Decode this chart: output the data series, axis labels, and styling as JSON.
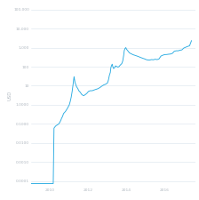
{
  "title": "",
  "ylabel": "USD",
  "background_color": "#ffffff",
  "line_color": "#29abe2",
  "grid_color": "#d8e4ed",
  "label_color": "#b0b8c0",
  "ylim_log": [
    -4.3,
    5.3
  ],
  "yticks": [
    0.0001,
    0.001,
    0.01,
    0.1,
    1.0,
    10,
    100,
    1000,
    10000,
    100000
  ],
  "ytick_labels": [
    "0.0001",
    "0.0010",
    "0.0100",
    "0.1000",
    "1.0000",
    "10",
    "100",
    "1,000",
    "10,000",
    "100,000"
  ],
  "xticks": [
    2010,
    2012,
    2014,
    2016
  ],
  "xlim": [
    2009.0,
    2017.6
  ],
  "bitcoin_data": {
    "dates": [
      2009.0,
      2009.3,
      2009.6,
      2009.9,
      2010.0,
      2010.08,
      2010.12,
      2010.16,
      2010.2,
      2010.25,
      2010.3,
      2010.38,
      2010.45,
      2010.5,
      2010.55,
      2010.6,
      2010.65,
      2010.7,
      2010.8,
      2010.9,
      2011.0,
      2011.05,
      2011.1,
      2011.15,
      2011.2,
      2011.25,
      2011.3,
      2011.38,
      2011.45,
      2011.5,
      2011.58,
      2011.65,
      2011.75,
      2011.85,
      2011.92,
      2012.0,
      2012.1,
      2012.2,
      2012.3,
      2012.4,
      2012.5,
      2012.6,
      2012.7,
      2012.8,
      2012.9,
      2013.0,
      2013.05,
      2013.1,
      2013.15,
      2013.18,
      2013.22,
      2013.25,
      2013.28,
      2013.32,
      2013.38,
      2013.42,
      2013.46,
      2013.5,
      2013.55,
      2013.6,
      2013.65,
      2013.7,
      2013.75,
      2013.8,
      2013.85,
      2013.88,
      2013.92,
      2013.96,
      2014.0,
      2014.08,
      2014.15,
      2014.25,
      2014.35,
      2014.45,
      2014.55,
      2014.65,
      2014.75,
      2014.85,
      2014.95,
      2015.0,
      2015.1,
      2015.2,
      2015.3,
      2015.4,
      2015.5,
      2015.6,
      2015.7,
      2015.8,
      2015.9,
      2016.0,
      2016.1,
      2016.2,
      2016.3,
      2016.4,
      2016.5,
      2016.6,
      2016.7,
      2016.8,
      2016.9,
      2017.0,
      2017.1,
      2017.2,
      2017.3,
      2017.4
    ],
    "prices": [
      7.5e-05,
      7.5e-05,
      7.5e-05,
      7.5e-05,
      7.5e-05,
      7.5e-05,
      7.5e-05,
      7.5e-05,
      0.06,
      0.07,
      0.08,
      0.09,
      0.1,
      0.12,
      0.15,
      0.2,
      0.25,
      0.35,
      0.45,
      0.65,
      1.0,
      1.5,
      2.5,
      5.0,
      12.0,
      30.0,
      15.0,
      9.0,
      7.0,
      5.5,
      4.5,
      3.5,
      3.0,
      3.5,
      4.0,
      5.0,
      5.5,
      5.5,
      6.0,
      6.5,
      7.0,
      8.0,
      9.5,
      11.0,
      12.0,
      14.0,
      20.0,
      35.0,
      50.0,
      90.0,
      120.0,
      135.0,
      100.0,
      80.0,
      90.0,
      110.0,
      105.0,
      100.0,
      95.0,
      100.0,
      115.0,
      130.0,
      145.0,
      200.0,
      400.0,
      700.0,
      900.0,
      1000.0,
      820.0,
      650.0,
      530.0,
      470.0,
      420.0,
      390.0,
      360.0,
      330.0,
      300.0,
      275.0,
      255.0,
      240.0,
      225.0,
      220.0,
      235.0,
      230.0,
      245.0,
      235.0,
      255.0,
      360.0,
      400.0,
      430.0,
      435.0,
      450.0,
      460.0,
      500.0,
      640.0,
      680.0,
      680.0,
      730.0,
      760.0,
      950.0,
      1050.0,
      1150.0,
      1250.0,
      2300.0
    ]
  }
}
